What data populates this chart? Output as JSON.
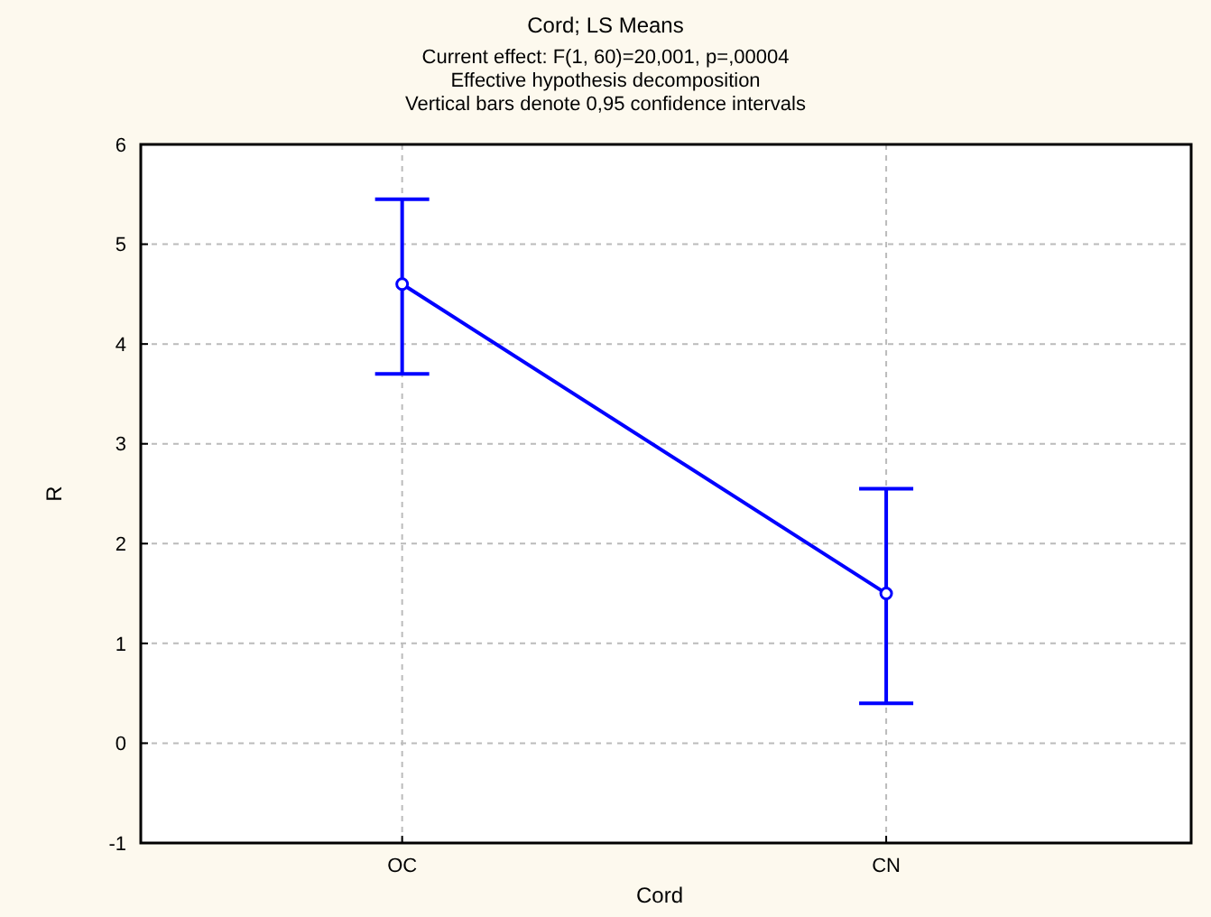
{
  "chart_data": {
    "type": "line",
    "title": "Cord; LS Means",
    "subtitle": "Current effect: F(1, 60)=20,001, p=,00004\nEffective hypothesis decomposition\nVertical bars denote 0,95 confidence intervals",
    "xlabel": "Cord",
    "ylabel": "R",
    "categories": [
      "OC",
      "CN"
    ],
    "series": [
      {
        "color": "#0000ff",
        "values": [
          4.6,
          1.5
        ],
        "errors": [
          [
            3.7,
            5.45
          ],
          [
            0.4,
            2.55
          ]
        ]
      }
    ],
    "ylim": [
      -1,
      6
    ],
    "yticks": [
      -1,
      0,
      1,
      2,
      3,
      4,
      5,
      6
    ],
    "grid": true,
    "marker": "circle",
    "line_style": "solid"
  }
}
